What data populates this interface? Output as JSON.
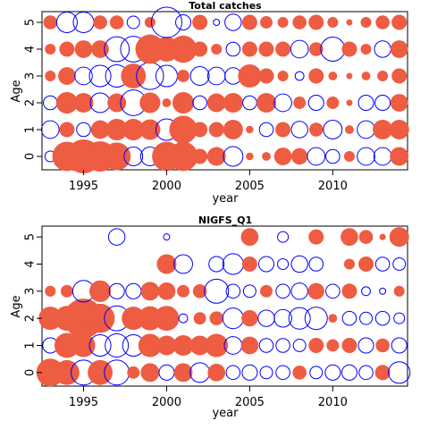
{
  "chart_data": [
    {
      "type": "scatter",
      "subtype": "bubble",
      "title": "Total catches",
      "xlabel": "year",
      "ylabel": "Age",
      "xticks": [
        1995,
        2000,
        2005,
        2010
      ],
      "yticks": [
        0,
        1,
        2,
        3,
        4,
        5
      ],
      "xlim": [
        1992.5,
        2014.5
      ],
      "ylim": [
        -0.5,
        5.4
      ],
      "years": [
        1993,
        1994,
        1995,
        1996,
        1997,
        1998,
        1999,
        2000,
        2001,
        2002,
        2003,
        2004,
        2005,
        2006,
        2007,
        2008,
        2009,
        2010,
        2011,
        2012,
        2013,
        2014
      ],
      "ages": [
        0,
        1,
        2,
        3,
        4,
        5
      ],
      "colors": {
        "positive": "#EE5C42",
        "negative": "#0000FF"
      },
      "encoding": "values are standardized residuals: positive = filled red-orange, negative = open blue; radius proportional to sqrt(|value|)",
      "values": [
        [
          -0.3,
          2.2,
          3.0,
          2.4,
          2.0,
          -0.9,
          -0.9,
          2.2,
          2.2,
          0.6,
          0.9,
          -1.0,
          0.15,
          0.2,
          0.8,
          0.7,
          -0.8,
          -0.5,
          0.3,
          -0.8,
          -0.8,
          0.9
        ],
        [
          -0.8,
          0.6,
          -0.5,
          0.9,
          1.2,
          1.2,
          1.1,
          -1.2,
          2.0,
          0.6,
          0.6,
          1.0,
          0.15,
          -0.5,
          0.6,
          -0.7,
          0.5,
          -0.9,
          0.2,
          -0.8,
          1.0,
          1.0
        ],
        [
          -0.5,
          1.2,
          1.0,
          -1.0,
          0.9,
          -1.7,
          1.1,
          0.2,
          1.2,
          -0.5,
          0.9,
          1.0,
          -0.5,
          1.0,
          -0.8,
          0.4,
          -0.6,
          0.4,
          0.1,
          -0.6,
          -0.6,
          0.8
        ],
        [
          0.3,
          0.8,
          -0.8,
          -1.2,
          -1.3,
          1.6,
          -1.9,
          -1.2,
          0.4,
          -0.9,
          -0.8,
          -0.7,
          1.4,
          0.6,
          0.3,
          -0.2,
          0.6,
          0.2,
          0.1,
          0.2,
          0.3,
          0.6
        ],
        [
          0.3,
          0.6,
          0.8,
          0.8,
          -1.6,
          -1.7,
          2.2,
          1.6,
          1.9,
          0.6,
          0.3,
          -0.5,
          0.6,
          0.6,
          0.6,
          -0.8,
          0.5,
          -1.5,
          0.6,
          0.3,
          -0.7,
          0.8
        ],
        [
          0.5,
          -1.1,
          -1.1,
          0.5,
          0.5,
          -0.4,
          0.3,
          -2.4,
          -0.6,
          0.6,
          -0.1,
          -0.7,
          0.6,
          0.4,
          0.3,
          0.5,
          0.6,
          0.3,
          0.1,
          0.3,
          0.5,
          0.6
        ]
      ]
    },
    {
      "type": "scatter",
      "subtype": "bubble",
      "title": "NIGFS_Q1",
      "xlabel": "year",
      "ylabel": "Age",
      "xticks": [
        1995,
        2000,
        2005,
        2010
      ],
      "yticks": [
        0,
        1,
        2,
        3,
        4,
        5
      ],
      "xlim": [
        1992.5,
        2014.5
      ],
      "ylim": [
        -0.5,
        5.4
      ],
      "years": [
        1993,
        1994,
        1995,
        1996,
        1997,
        1998,
        1999,
        2000,
        2001,
        2002,
        2003,
        2004,
        2005,
        2006,
        2007,
        2008,
        2009,
        2010,
        2011,
        2012,
        2013,
        2014
      ],
      "ages": [
        0,
        1,
        2,
        3,
        4,
        5
      ],
      "colors": {
        "positive": "#EE5C42",
        "negative": "#0000FF"
      },
      "encoding": "values are standardized residuals: positive = filled red-orange, negative = open blue; radius proportional to sqrt(|value|)",
      "values": [
        [
          2.0,
          1.6,
          -1.6,
          1.6,
          -1.6,
          0.4,
          0.9,
          -0.6,
          0.9,
          -1.0,
          0.8,
          -0.5,
          -0.6,
          -0.4,
          -0.5,
          0.5,
          -0.4,
          -0.6,
          -0.6,
          -0.5,
          0.6,
          -1.2
        ],
        [
          -0.6,
          1.6,
          1.4,
          -1.2,
          -1.4,
          -1.2,
          1.4,
          1.0,
          1.1,
          1.0,
          1.4,
          -0.8,
          0.8,
          -0.5,
          -0.5,
          -0.4,
          0.6,
          0.4,
          0.6,
          -0.6,
          0.5,
          -0.6
        ],
        [
          1.4,
          1.6,
          4.0,
          2.2,
          -1.6,
          1.4,
          1.5,
          1.6,
          -0.2,
          0.4,
          0.5,
          -1.1,
          0.7,
          -0.7,
          -0.8,
          -1.2,
          -1.3,
          0.2,
          -0.5,
          -0.4,
          -0.5,
          -0.3
        ],
        [
          0.3,
          0.4,
          -1.2,
          1.2,
          -0.6,
          -0.6,
          0.9,
          0.8,
          0.4,
          0.5,
          -1.5,
          -0.5,
          -0.4,
          0.4,
          -0.5,
          -0.7,
          0.7,
          -0.5,
          0.6,
          -0.2,
          -0.1,
          0.3
        ],
        [
          0,
          0,
          0,
          0,
          0,
          0,
          0,
          1.0,
          -0.9,
          0,
          -0.6,
          -1.1,
          0.6,
          -0.6,
          -0.3,
          -0.7,
          -0.5,
          0,
          0.3,
          0.6,
          -0.5,
          -0.4
        ],
        [
          0,
          0,
          0,
          0,
          -0.7,
          0,
          0,
          -0.1,
          0,
          0,
          0,
          0,
          0.8,
          0,
          -0.3,
          0,
          0.6,
          0,
          0.8,
          0.5,
          0.1,
          1.0
        ]
      ]
    }
  ]
}
